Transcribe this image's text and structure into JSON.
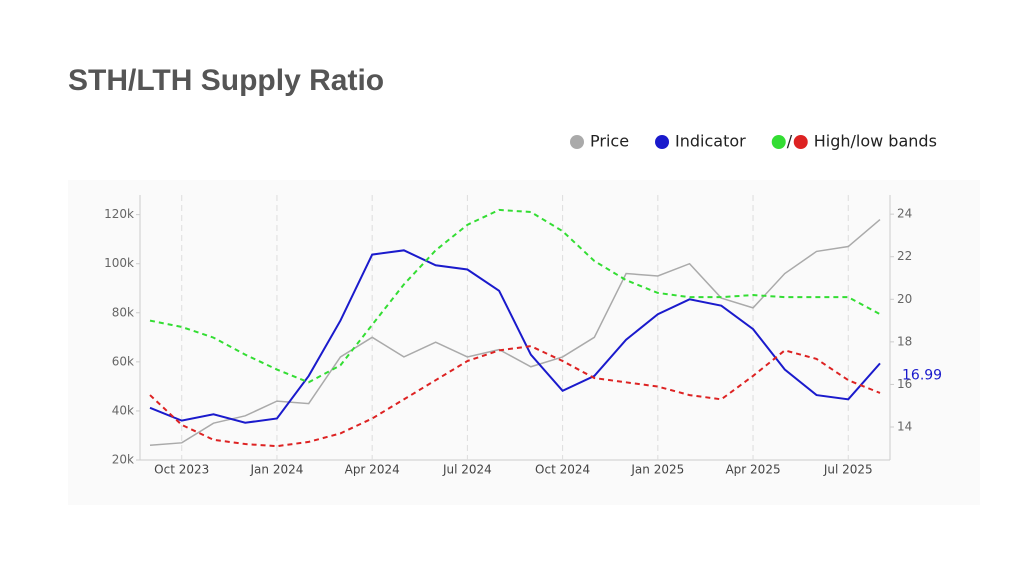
{
  "chart_data": {
    "type": "line",
    "title": "STH/LTH Supply Ratio",
    "x": [
      "2023-09",
      "2023-10",
      "2023-11",
      "2023-12",
      "2024-01",
      "2024-02",
      "2024-03",
      "2024-04",
      "2024-05",
      "2024-06",
      "2024-07",
      "2024-08",
      "2024-09",
      "2024-10",
      "2024-11",
      "2024-12",
      "2025-01",
      "2025-02",
      "2025-03",
      "2025-04",
      "2025-05",
      "2025-06",
      "2025-07",
      "2025-08"
    ],
    "xlim": [
      "2023-09",
      "2025-08"
    ],
    "xticks": [
      {
        "value": "2023-10",
        "label": "Oct 2023"
      },
      {
        "value": "2024-01",
        "label": "Jan 2024"
      },
      {
        "value": "2024-04",
        "label": "Apr 2024"
      },
      {
        "value": "2024-07",
        "label": "Jul 2024"
      },
      {
        "value": "2024-10",
        "label": "Oct 2024"
      },
      {
        "value": "2025-01",
        "label": "Jan 2025"
      },
      {
        "value": "2025-04",
        "label": "Apr 2025"
      },
      {
        "value": "2025-07",
        "label": "Jul 2025"
      }
    ],
    "ylim": [
      20000,
      128000
    ],
    "yticks": [
      {
        "value": 20000,
        "label": "20k"
      },
      {
        "value": 40000,
        "label": "40k"
      },
      {
        "value": 60000,
        "label": "60k"
      },
      {
        "value": 80000,
        "label": "80k"
      },
      {
        "value": 100000,
        "label": "100k"
      },
      {
        "value": 120000,
        "label": "120k"
      }
    ],
    "y2lim": [
      12.45,
      24.9
    ],
    "y2ticks": [
      14,
      16,
      18,
      20,
      22,
      24
    ],
    "grid": true,
    "legend_separator": "/",
    "series": [
      {
        "name": "Price",
        "color": "#aaaaaa",
        "values": [
          26000,
          27000,
          35000,
          38000,
          44000,
          43000,
          62000,
          70000,
          62000,
          68000,
          62000,
          65000,
          58000,
          62000,
          70000,
          96000,
          95000,
          100000,
          86000,
          82000,
          96000,
          105000,
          107000,
          118000
        ]
      },
      {
        "name": "Indicator",
        "color": "#1a1acc",
        "axis": "y2",
        "values": [
          14.9,
          14.3,
          14.6,
          14.2,
          14.4,
          16.4,
          19.0,
          22.1,
          22.3,
          21.6,
          21.4,
          20.4,
          17.4,
          15.7,
          16.4,
          18.1,
          19.3,
          20.0,
          19.7,
          18.6,
          16.7,
          15.5,
          15.3,
          16.99
        ]
      },
      {
        "name": "High/low bands",
        "colors": [
          "#33dd33",
          "#dd2222"
        ],
        "axis": "y2",
        "values": [
          19.0,
          18.7,
          18.2,
          17.4,
          16.7,
          16.1,
          16.9,
          18.8,
          20.7,
          22.3,
          23.5,
          24.2,
          24.1,
          23.2,
          21.8,
          20.9,
          20.3,
          20.1,
          20.1,
          20.2,
          20.1,
          20.1,
          20.1,
          19.3
        ],
        "low_values": [
          15.5,
          14.1,
          13.4,
          13.2,
          13.1,
          13.3,
          13.7,
          14.4,
          15.3,
          16.2,
          17.1,
          17.6,
          17.8,
          17.1,
          16.3,
          16.1,
          15.9,
          15.5,
          15.3,
          16.4,
          17.6,
          17.2,
          16.2,
          15.6
        ]
      }
    ]
  }
}
